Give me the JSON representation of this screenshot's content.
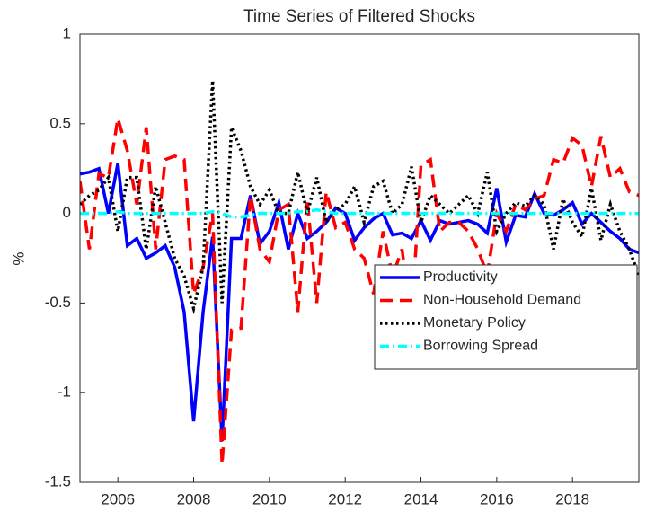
{
  "chart_data": {
    "type": "line",
    "title": "Time Series of Filtered Shocks",
    "ylabel": "%",
    "x": [
      2005,
      2005.25,
      2005.5,
      2005.75,
      2006,
      2006.25,
      2006.5,
      2006.75,
      2007,
      2007.25,
      2007.5,
      2007.75,
      2008,
      2008.25,
      2008.5,
      2008.75,
      2009,
      2009.25,
      2009.5,
      2009.75,
      2010,
      2010.25,
      2010.5,
      2010.75,
      2011,
      2011.25,
      2011.5,
      2011.75,
      2012,
      2012.25,
      2012.5,
      2012.75,
      2013,
      2013.25,
      2013.5,
      2013.75,
      2014,
      2014.25,
      2014.5,
      2014.75,
      2015,
      2015.25,
      2015.5,
      2015.75,
      2016,
      2016.25,
      2016.5,
      2016.75,
      2017,
      2017.25,
      2017.5,
      2017.75,
      2018,
      2018.25,
      2018.5,
      2018.75,
      2019,
      2019.25,
      2019.5,
      2019.75
    ],
    "series": [
      {
        "name": "Productivity",
        "color": "#0000ff",
        "line_style": "solid",
        "values": [
          0.22,
          0.23,
          0.25,
          0.0,
          0.28,
          -0.18,
          -0.14,
          -0.25,
          -0.22,
          -0.18,
          -0.3,
          -0.55,
          -1.16,
          -0.55,
          -0.13,
          -1.27,
          -0.14,
          -0.14,
          0.1,
          -0.17,
          -0.1,
          0.06,
          -0.2,
          0.0,
          -0.14,
          -0.1,
          -0.05,
          0.03,
          0.0,
          -0.15,
          -0.08,
          -0.03,
          0.0,
          -0.12,
          -0.11,
          -0.14,
          -0.04,
          -0.15,
          -0.04,
          -0.06,
          -0.05,
          -0.04,
          -0.06,
          -0.11,
          0.14,
          -0.16,
          -0.01,
          -0.02,
          0.11,
          0.0,
          -0.01,
          0.02,
          0.06,
          -0.06,
          0.0,
          -0.05,
          -0.1,
          -0.14,
          -0.2,
          -0.22
        ]
      },
      {
        "name": "Non-Household Demand",
        "color": "#ff0000",
        "line_style": "dashed",
        "values": [
          0.18,
          -0.2,
          0.22,
          0.2,
          0.53,
          0.35,
          0.05,
          0.48,
          -0.2,
          0.3,
          0.32,
          0.3,
          -0.45,
          -0.3,
          0.0,
          -1.4,
          -0.65,
          -0.64,
          0.1,
          -0.2,
          -0.27,
          0.02,
          0.05,
          -0.55,
          0.08,
          -0.5,
          0.12,
          -0.08,
          -0.05,
          -0.2,
          -0.25,
          -0.45,
          -0.1,
          -0.35,
          -0.2,
          -0.6,
          0.27,
          0.3,
          -0.1,
          -0.05,
          -0.05,
          -0.1,
          -0.2,
          -0.34,
          0.0,
          -0.1,
          0.05,
          0.02,
          0.08,
          0.1,
          0.3,
          0.28,
          0.42,
          0.38,
          0.15,
          0.43,
          0.2,
          0.25,
          0.12,
          0.1
        ]
      },
      {
        "name": "Monetary Policy",
        "color": "#000000",
        "line_style": "dotted",
        "values": [
          0.05,
          0.1,
          0.13,
          0.2,
          -0.1,
          0.2,
          0.2,
          -0.2,
          0.15,
          -0.05,
          -0.25,
          -0.35,
          -0.53,
          -0.3,
          0.74,
          -0.5,
          0.48,
          0.35,
          0.15,
          0.05,
          0.13,
          0.0,
          0.0,
          0.23,
          0.0,
          0.2,
          -0.05,
          0.02,
          0.05,
          0.15,
          -0.05,
          0.15,
          0.18,
          0.0,
          0.05,
          0.26,
          -0.05,
          0.1,
          0.05,
          0.0,
          0.05,
          0.1,
          0.0,
          0.23,
          -0.1,
          0.0,
          0.06,
          0.04,
          0.1,
          0.05,
          -0.2,
          0.08,
          -0.05,
          -0.13,
          0.14,
          -0.15,
          0.05,
          -0.1,
          -0.2,
          -0.35
        ]
      },
      {
        "name": "Borrowing Spread",
        "color": "#00ffff",
        "line_style": "dashdot",
        "values": [
          0,
          0,
          0,
          0,
          0.01,
          0,
          0,
          0,
          0,
          0,
          0,
          0,
          0,
          0,
          0.01,
          0,
          -0.02,
          -0.02,
          -0.01,
          0,
          0,
          0,
          0,
          0.01,
          0.01,
          0.02,
          0.01,
          0,
          0,
          0,
          0,
          0,
          0,
          0,
          0,
          0,
          0,
          0,
          0,
          0,
          0,
          0,
          0,
          0,
          0,
          0,
          0,
          0,
          0,
          0,
          0,
          0,
          0,
          0,
          0,
          0,
          0,
          0,
          0,
          0
        ]
      }
    ],
    "xlim": [
      2005,
      2019.75
    ],
    "xticks": [
      2006,
      2008,
      2010,
      2012,
      2014,
      2016,
      2018
    ],
    "ylim": [
      -1.5,
      1
    ],
    "yticks": [
      -1.5,
      -1,
      -0.5,
      0,
      0.5,
      1
    ],
    "legend": "lower right"
  }
}
